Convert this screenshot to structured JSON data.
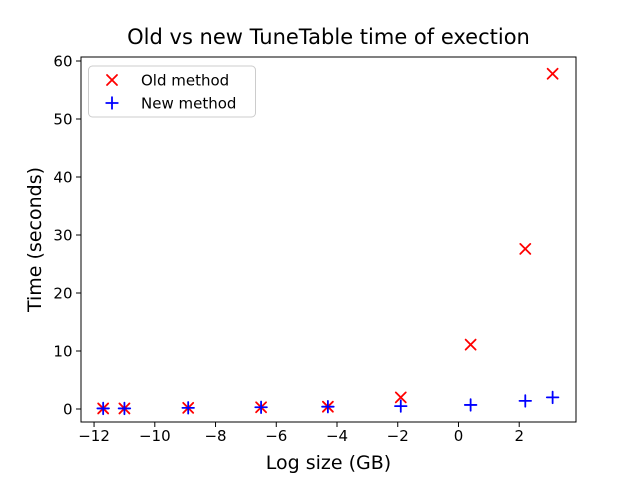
{
  "figure": {
    "title": "Old vs new TuneTable time of exection",
    "xlabel": "Log size (GB)",
    "ylabel": "Time (seconds)"
  },
  "legend": {
    "position": "upper left",
    "items": [
      {
        "label": "Old method",
        "marker": "x-marker",
        "color": "#ff0000"
      },
      {
        "label": "New method",
        "marker": "plus-marker",
        "color": "#0000ff"
      }
    ]
  },
  "chart_data": {
    "type": "scatter",
    "title": "Old vs new TuneTable time of exection",
    "xlabel": "Log size (GB)",
    "ylabel": "Time (seconds)",
    "x": [
      -11.7,
      -11.0,
      -8.9,
      -6.5,
      -4.3,
      -1.9,
      0.4,
      2.2,
      3.1
    ],
    "series": [
      {
        "name": "Old method",
        "marker": "x",
        "color": "#ff0000",
        "values": [
          0.1,
          0.1,
          0.2,
          0.3,
          0.4,
          2.0,
          11.1,
          27.6,
          57.8
        ]
      },
      {
        "name": "New method",
        "marker": "+",
        "color": "#0000ff",
        "values": [
          0.1,
          0.1,
          0.2,
          0.3,
          0.4,
          0.5,
          0.7,
          1.4,
          2.0
        ]
      }
    ],
    "xlim": [
      -12.43,
      3.87
    ],
    "ylim": [
      -2.24,
      60.69
    ],
    "xticks": [
      -12,
      -10,
      -8,
      -6,
      -4,
      -2,
      0,
      2
    ],
    "yticks": [
      0,
      10,
      20,
      30,
      40,
      50,
      60
    ],
    "grid": false,
    "legend_position": "upper left"
  }
}
